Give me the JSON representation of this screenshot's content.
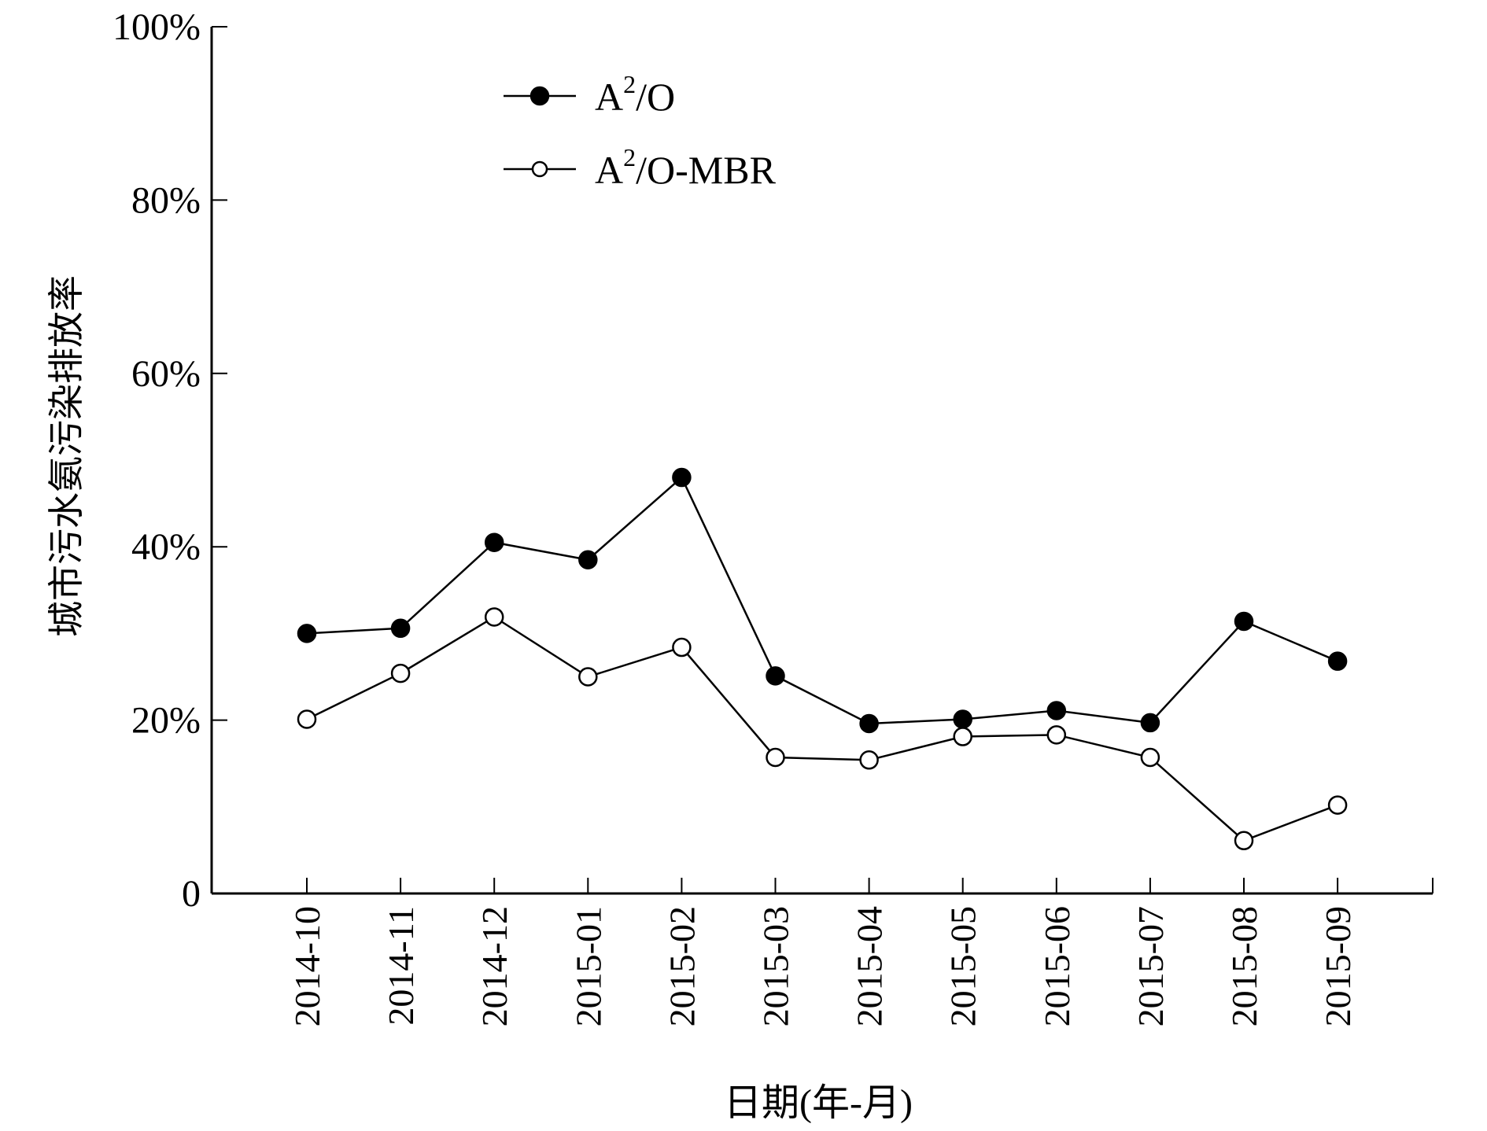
{
  "chart_data": {
    "type": "line",
    "title": "",
    "xlabel": "日期(年-月)",
    "ylabel": "城市污水氨污染排放率",
    "categories": [
      "2014-10",
      "2014-11",
      "2014-12",
      "2015-01",
      "2015-02",
      "2015-03",
      "2015-04",
      "2015-05",
      "2015-06",
      "2015-07",
      "2015-08",
      "2015-09"
    ],
    "ylim": [
      0,
      100
    ],
    "yticks": [
      0,
      20,
      40,
      60,
      80,
      100
    ],
    "ytick_labels": [
      "0",
      "20%",
      "40%",
      "60%",
      "80%",
      "100%"
    ],
    "grid": false,
    "legend_position": "top-left",
    "series": [
      {
        "name": "A2/O",
        "label_base": "A",
        "label_sup": "2",
        "label_rest": "/O",
        "marker": "filled-circle",
        "values": [
          30.0,
          30.6,
          40.5,
          38.5,
          48.0,
          25.1,
          19.6,
          20.1,
          21.1,
          19.7,
          31.4,
          26.8
        ]
      },
      {
        "name": "A2/O-MBR",
        "label_base": "A",
        "label_sup": "2",
        "label_rest": "/O-MBR",
        "marker": "open-circle",
        "values": [
          20.1,
          25.4,
          31.9,
          25.0,
          28.4,
          15.7,
          15.4,
          18.1,
          18.3,
          15.7,
          6.1,
          10.2
        ]
      }
    ]
  }
}
